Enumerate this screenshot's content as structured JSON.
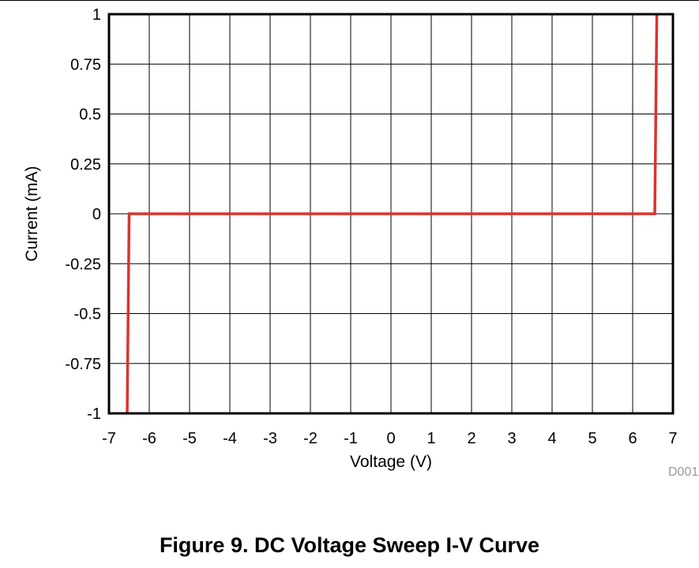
{
  "figure": {
    "caption": "Figure 9. DC Voltage Sweep I-V Curve",
    "doc_label": "D001"
  },
  "chart_data": {
    "type": "line",
    "xlabel": "Voltage (V)",
    "ylabel": "Current (mA)",
    "xlim": [
      -7,
      7
    ],
    "ylim": [
      -1,
      1
    ],
    "xticks": [
      -7,
      -6,
      -5,
      -4,
      -3,
      -2,
      -1,
      0,
      1,
      2,
      3,
      4,
      5,
      6,
      7
    ],
    "yticks": [
      -1,
      -0.75,
      -0.5,
      -0.25,
      0,
      0.25,
      0.5,
      0.75,
      1
    ],
    "grid": true,
    "series": [
      {
        "color": "#d9342b",
        "x": [
          -6.55,
          -6.5,
          6.55,
          6.6
        ],
        "y": [
          -1,
          0,
          0,
          1
        ]
      }
    ]
  }
}
